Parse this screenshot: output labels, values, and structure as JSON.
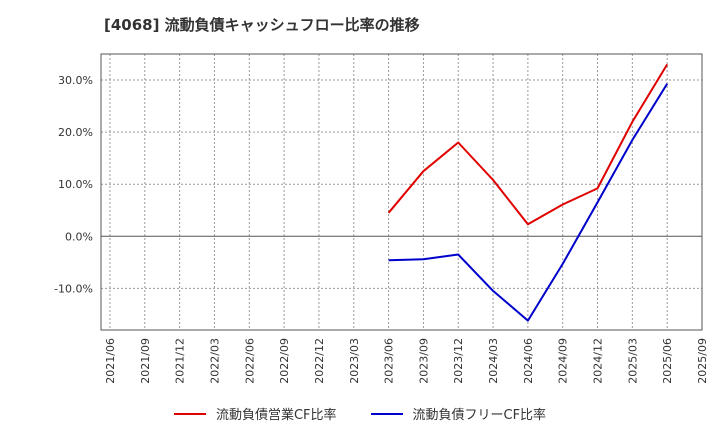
{
  "header": {
    "title": "[4068]  流動負債キャッシュフロー比率の推移"
  },
  "colors": {
    "operating": "#e00000",
    "free": "#0000cc",
    "grid": "#999999",
    "axis": "#555555"
  },
  "chart_data": {
    "type": "line",
    "title": "[4068]  流動負債キャッシュフロー比率の推移",
    "xlabel": "",
    "ylabel": "",
    "ylim": [
      -18,
      35
    ],
    "yticks": [
      -10,
      0,
      10,
      20,
      30
    ],
    "ytick_labels": [
      "-10.0%",
      "0.0%",
      "10.0%",
      "20.0%",
      "30.0%"
    ],
    "categories": [
      "2021/06",
      "2021/09",
      "2021/12",
      "2022/03",
      "2022/06",
      "2022/09",
      "2022/12",
      "2023/03",
      "2023/06",
      "2023/09",
      "2023/12",
      "2024/03",
      "2024/06",
      "2024/09",
      "2024/12",
      "2025/03",
      "2025/06",
      "2025/09"
    ],
    "series": [
      {
        "name": "流動負債営業CF比率",
        "color": "#e00000",
        "values": [
          null,
          null,
          null,
          null,
          null,
          null,
          null,
          null,
          4.5,
          12.5,
          18.0,
          10.8,
          2.3,
          6.1,
          9.2,
          22.0,
          33.0,
          null
        ]
      },
      {
        "name": "流動負債フリーCF比率",
        "color": "#0000cc",
        "values": [
          null,
          null,
          null,
          null,
          null,
          null,
          null,
          null,
          -4.6,
          -4.4,
          -3.5,
          -10.5,
          -16.2,
          -5.3,
          6.5,
          18.5,
          29.3,
          null
        ]
      }
    ],
    "legend": {
      "position": "bottom"
    }
  }
}
